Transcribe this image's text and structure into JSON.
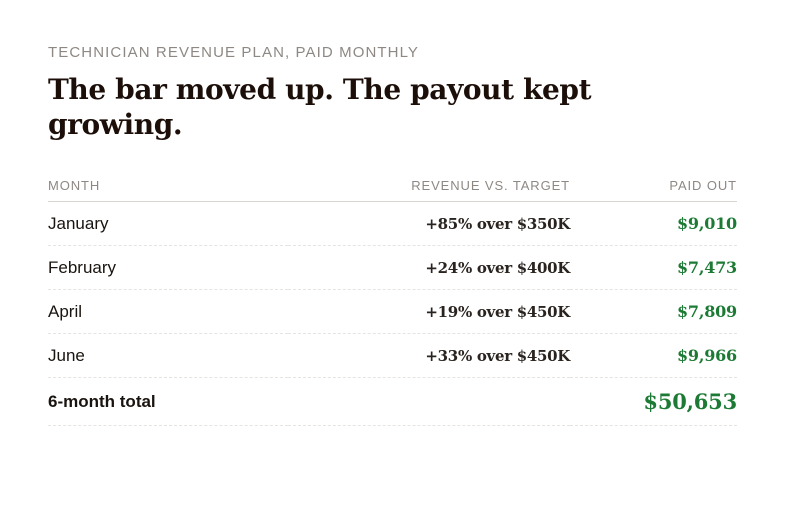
{
  "eyebrow": "TECHNICIAN REVENUE PLAN, PAID MONTHLY",
  "headline": "The bar moved up. The payout kept growing.",
  "table": {
    "headers": {
      "month": "MONTH",
      "revenue": "REVENUE VS. TARGET",
      "paid": "PAID OUT"
    },
    "rows": [
      {
        "month": "January",
        "revenue": "+85% over $350K",
        "paid": "$9,010"
      },
      {
        "month": "February",
        "revenue": "+24% over $400K",
        "paid": "$7,473"
      },
      {
        "month": "April",
        "revenue": "+19% over $450K",
        "paid": "$7,809"
      },
      {
        "month": "June",
        "revenue": "+33% over $450K",
        "paid": "$9,966"
      }
    ],
    "total": {
      "label": "6-month total",
      "revenue": "",
      "paid": "$50,653"
    }
  },
  "colors": {
    "paid_accent": "#1c7a34",
    "heading": "#1c0e08",
    "muted": "#8e8884"
  }
}
